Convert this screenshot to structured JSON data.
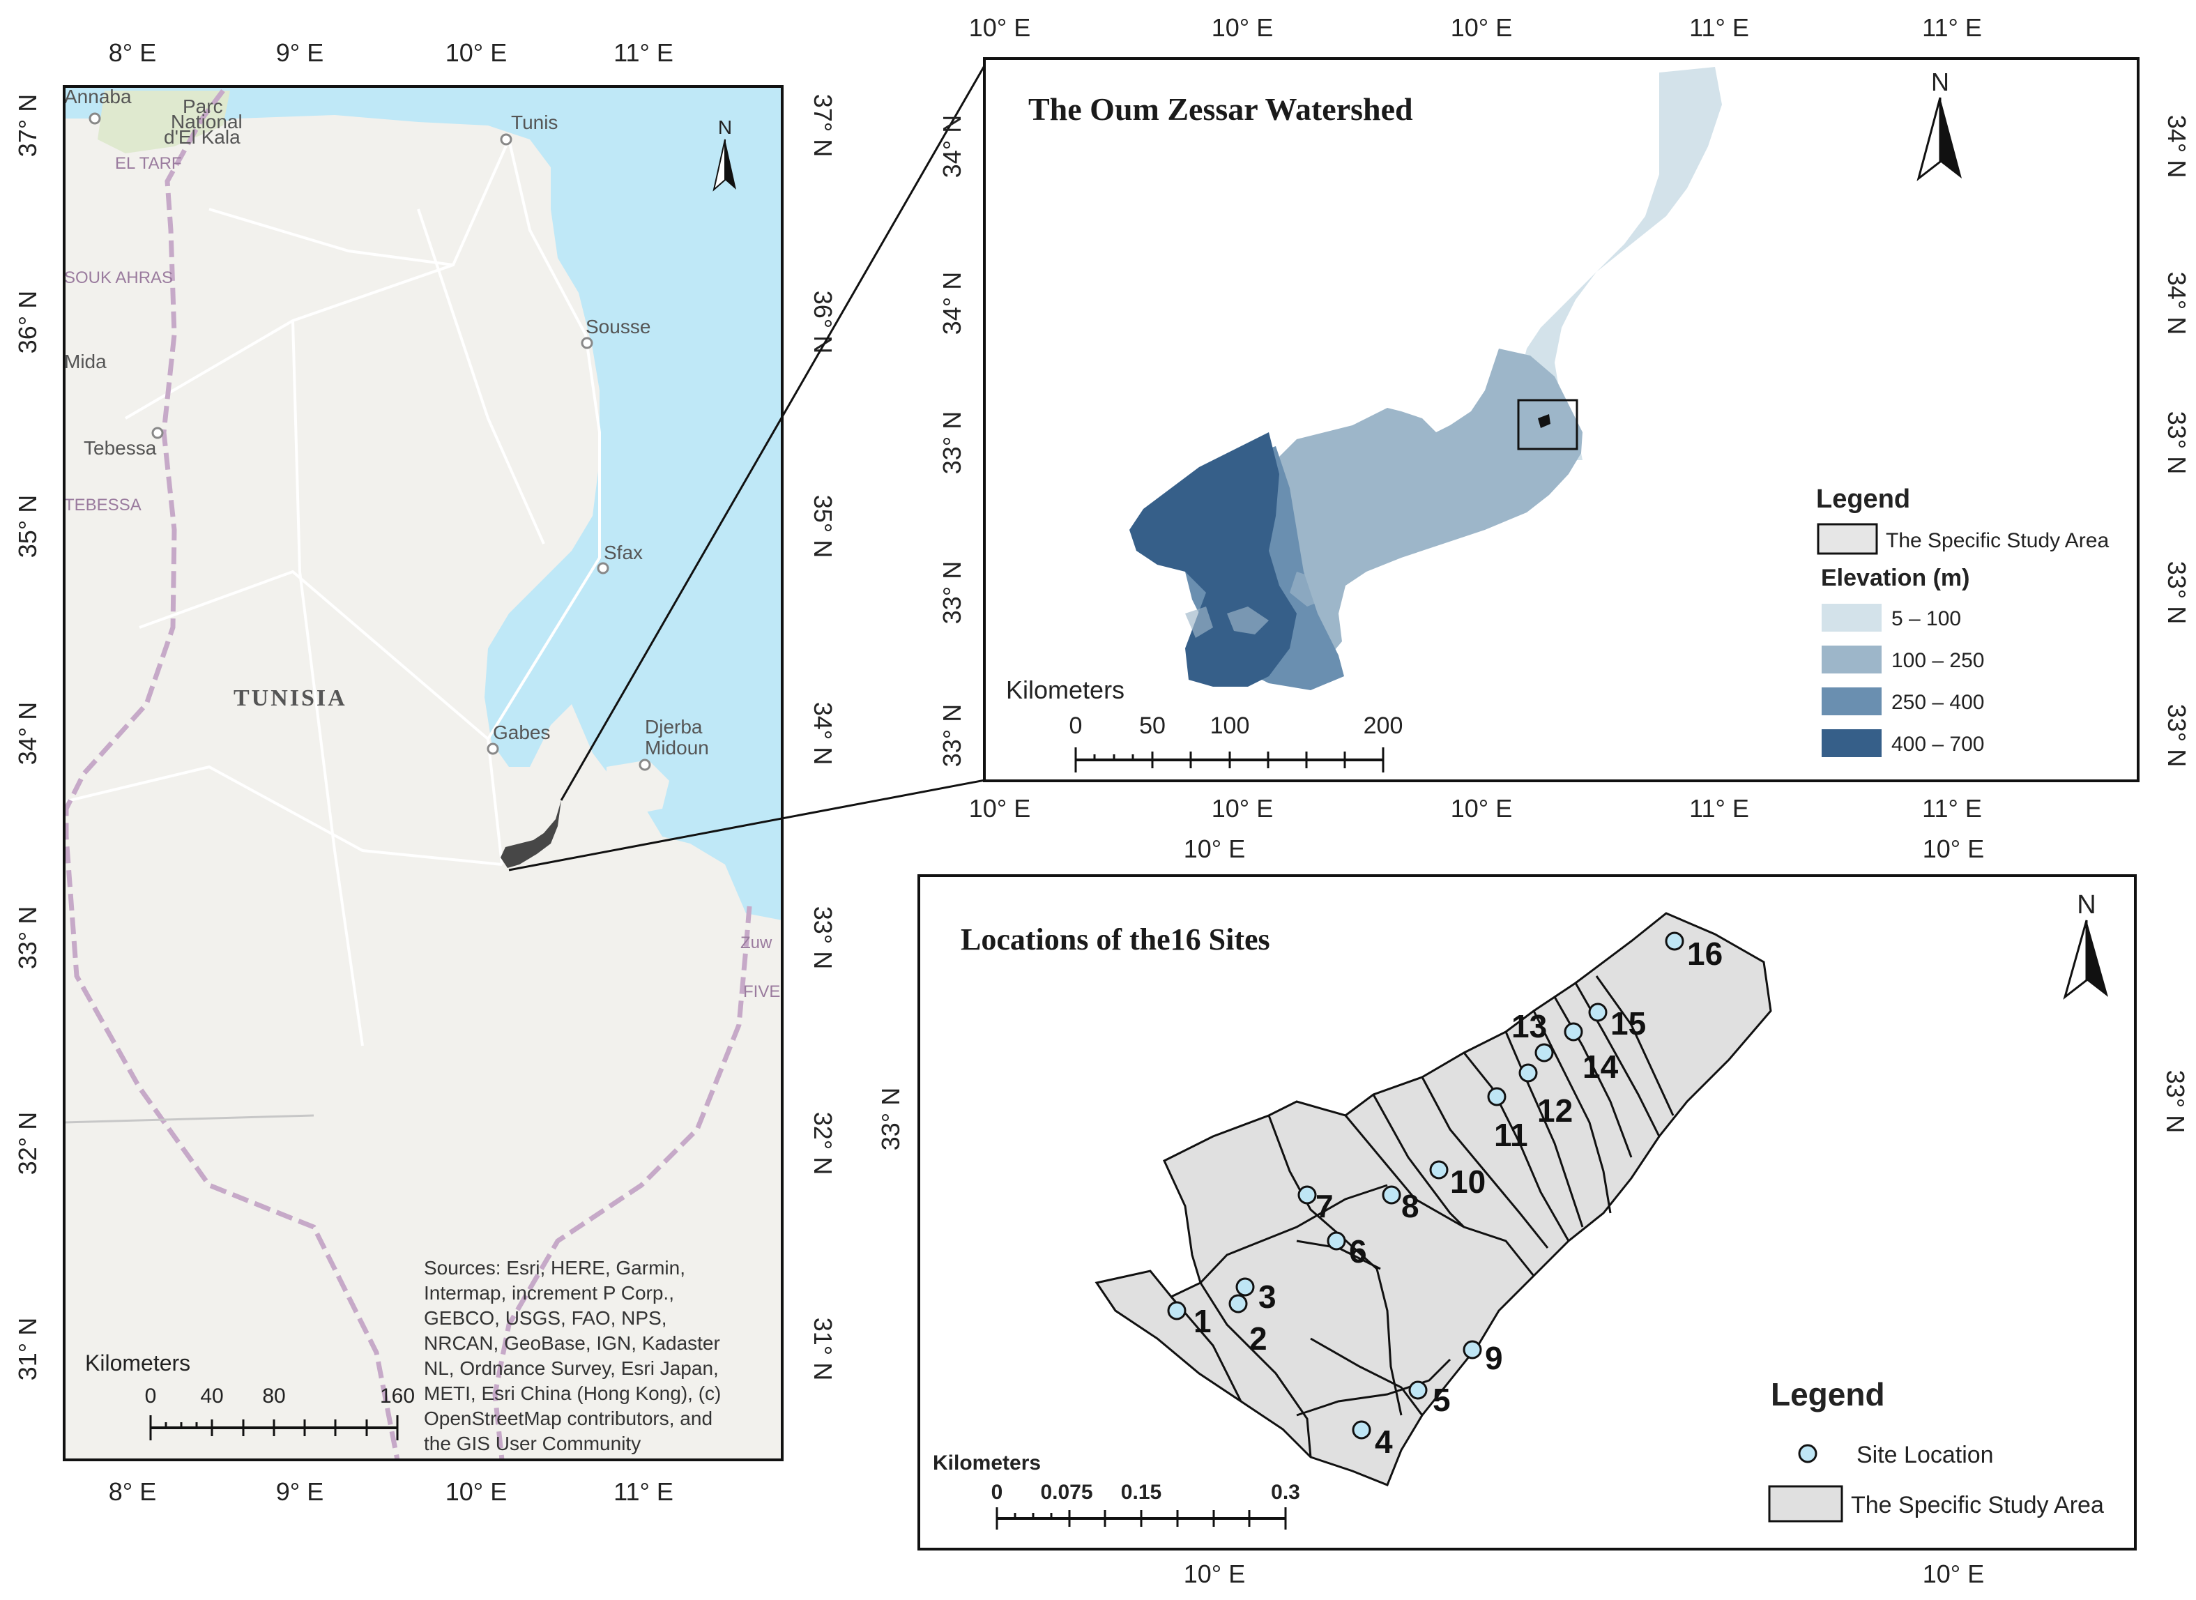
{
  "left_map": {
    "top_ticks": [
      "8° E",
      "9° E",
      "10° E",
      "11° E"
    ],
    "bottom_ticks": [
      "8° E",
      "9° E",
      "10° E",
      "11° E"
    ],
    "left_ticks": [
      "37° N",
      "36° N",
      "35° N",
      "34° N",
      "33° N",
      "32° N",
      "31° N"
    ],
    "right_ticks": [
      "37° N",
      "36° N",
      "35° N",
      "34° N",
      "33° N",
      "32° N",
      "31° N"
    ],
    "north": "N",
    "country": "TUNISIA",
    "cities": [
      "Tunis",
      "Sousse",
      "Tebessa",
      "Sfax",
      "Gabes",
      "Djerba",
      "Midoun",
      "Annaba",
      "Parc",
      "National",
      "d'El Kala",
      "EL TARF",
      "SOUK AHRAS",
      "TEBESSA",
      "Zuw",
      "FIVE",
      "Mida"
    ],
    "scale_title": "Kilometers",
    "scale_ticks": [
      "0",
      "40",
      "80",
      "160"
    ],
    "sources": [
      "Sources: Esri, HERE, Garmin,",
      "Intermap, increment P Corp.,",
      "GEBCO, USGS, FAO, NPS,",
      "NRCAN, GeoBase, IGN, Kadaster",
      "NL, Ordnance Survey, Esri Japan,",
      "METI, Esri China (Hong Kong), (c)",
      "OpenStreetMap contributors, and",
      "the GIS User Community"
    ]
  },
  "watershed_map": {
    "title": "The Oum Zessar Watershed",
    "top_ticks": [
      "10° E",
      "10° E",
      "10° E",
      "11° E",
      "11° E"
    ],
    "bottom_ticks": [
      "10° E",
      "10° E",
      "10° E",
      "11° E",
      "11° E"
    ],
    "left_ticks": [
      "34° N",
      "34° N",
      "33° N",
      "33° N",
      "33° N"
    ],
    "right_ticks": [
      "34° N",
      "34° N",
      "33° N",
      "33° N",
      "33° N"
    ],
    "north": "N",
    "legend_title": "Legend",
    "legend_study_area": "The Specific Study Area",
    "legend_elev_title": "Elevation (m)",
    "elevation_classes": [
      {
        "label": "5 – 100",
        "color": "#d3e2ea"
      },
      {
        "label": "100 – 250",
        "color": "#9db6c9"
      },
      {
        "label": "250 – 400",
        "color": "#6a8fb0"
      },
      {
        "label": "400 – 700",
        "color": "#365f89"
      }
    ],
    "scale_title": "Kilometers",
    "scale_ticks": [
      "0",
      "50",
      "100",
      "200"
    ]
  },
  "sites_map": {
    "title": "Locations of the16 Sites",
    "top_ticks": [
      "10° E",
      "10° E"
    ],
    "bottom_ticks": [
      "10° E",
      "10° E"
    ],
    "left_ticks": [
      "33° N"
    ],
    "right_ticks": [
      "33° N"
    ],
    "north": "N",
    "site_labels": [
      "1",
      "2",
      "3",
      "4",
      "5",
      "6",
      "7",
      "8",
      "9",
      "10",
      "11",
      "12",
      "13",
      "14",
      "15",
      "16"
    ],
    "legend_title": "Legend",
    "legend_site": "Site Location",
    "legend_area": "The Specific Study Area",
    "scale_title": "Kilometers",
    "scale_ticks": [
      "0",
      "0.075",
      "0.15",
      "0.3"
    ],
    "site_color": "#bfe6f5",
    "area_color": "#e0e0e0"
  }
}
